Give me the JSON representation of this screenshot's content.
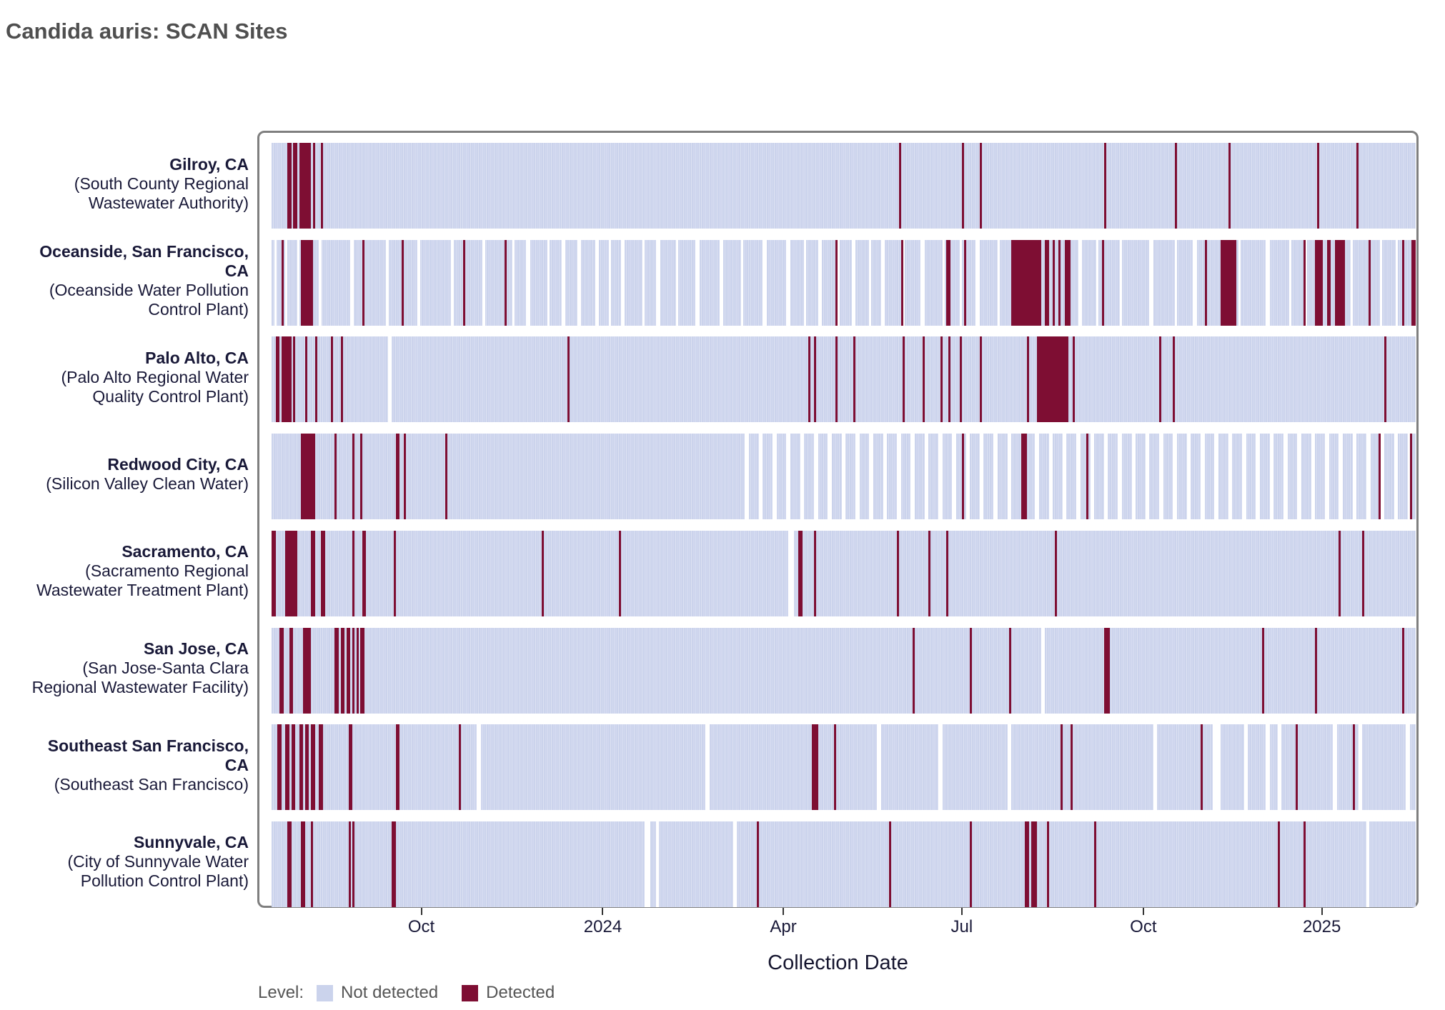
{
  "title": "Candida auris: SCAN Sites",
  "chart_data": {
    "type": "heatmap",
    "title": "Candida auris: SCAN Sites",
    "xlabel": "Collection Date",
    "x_unit": "days from start of plotted period (start = mid-July 2023, read from axis)",
    "day_span": [
      0,
      580
    ],
    "x_ticks": [
      {
        "label": "Oct",
        "day": 77
      },
      {
        "label": "2024",
        "day": 169
      },
      {
        "label": "Apr",
        "day": 260.5
      },
      {
        "label": "Jul",
        "day": 351
      },
      {
        "label": "Oct",
        "day": 443
      },
      {
        "label": "2025",
        "day": 533.5
      }
    ],
    "legend": {
      "label": "Level:",
      "items": [
        {
          "label": "Not detected",
          "color": "#cbd3ec"
        },
        {
          "label": "Detected",
          "color": "#7e0e33"
        }
      ]
    },
    "colors": {
      "not_detected": "#cbd3ec",
      "not_detected_stripe": "#dde2f3",
      "detected": "#7e0e33",
      "panel_border": "#7f7f7f",
      "label_text": "#191938",
      "title_text": "#4f4f4f",
      "legend_text": "#555555"
    },
    "sites": [
      {
        "name": "Gilroy, CA",
        "facility": "(South County Regional Wastewater Authority)",
        "gaps": [],
        "detected": [
          [
            8,
            10
          ],
          [
            11,
            13
          ],
          [
            14,
            20
          ],
          [
            21,
            22
          ],
          [
            25,
            26
          ],
          [
            318,
            319
          ],
          [
            350,
            351
          ],
          [
            359,
            360
          ],
          [
            422,
            423
          ],
          [
            458,
            459
          ],
          [
            485,
            486
          ],
          [
            530,
            531
          ],
          [
            550,
            551
          ]
        ]
      },
      {
        "name": "Oceanside, San Francisco, CA",
        "facility": "(Oceanside Water Pollution Control Plant)",
        "gaps": [
          [
            1.5,
            2.5
          ],
          [
            7,
            8
          ],
          [
            13,
            14
          ],
          [
            24,
            25.5
          ],
          [
            40,
            41.5
          ],
          [
            58,
            59.5
          ],
          [
            74,
            75.5
          ],
          [
            91,
            92.5
          ],
          [
            107,
            108.5
          ],
          [
            122,
            123
          ],
          [
            129,
            131
          ],
          [
            140,
            141
          ],
          [
            147,
            149
          ],
          [
            155,
            157
          ],
          [
            164,
            166
          ],
          [
            171,
            172
          ],
          [
            177,
            179
          ],
          [
            188,
            189
          ],
          [
            195,
            197
          ],
          [
            205,
            206
          ],
          [
            215,
            217
          ],
          [
            227,
            229
          ],
          [
            238,
            239
          ],
          [
            249,
            251
          ],
          [
            261,
            263
          ],
          [
            270,
            271
          ],
          [
            277,
            279
          ],
          [
            287,
            288
          ],
          [
            294,
            296
          ],
          [
            303,
            304
          ],
          [
            309,
            311
          ],
          [
            320,
            321
          ],
          [
            329,
            331
          ],
          [
            340,
            341
          ],
          [
            349,
            350
          ],
          [
            357,
            359
          ],
          [
            368,
            369
          ],
          [
            409,
            411
          ],
          [
            418,
            419
          ],
          [
            430,
            431
          ],
          [
            445,
            447
          ],
          [
            458,
            459
          ],
          [
            467,
            469
          ],
          [
            490,
            491
          ],
          [
            504,
            506
          ],
          [
            516,
            517
          ],
          [
            523,
            525
          ],
          [
            547,
            548
          ],
          [
            562,
            563
          ],
          [
            570,
            571
          ]
        ],
        "detected": [
          [
            5,
            6
          ],
          [
            15,
            21
          ],
          [
            46,
            47
          ],
          [
            66,
            67
          ],
          [
            97,
            98
          ],
          [
            118,
            119
          ],
          [
            286,
            287
          ],
          [
            319,
            320
          ],
          [
            342,
            344
          ],
          [
            351,
            352
          ],
          [
            375,
            390
          ],
          [
            392,
            394
          ],
          [
            396,
            397
          ],
          [
            399,
            400
          ],
          [
            402,
            405
          ],
          [
            421,
            422
          ],
          [
            473,
            474
          ],
          [
            481,
            489
          ],
          [
            523,
            524
          ],
          [
            529,
            533
          ],
          [
            535,
            537
          ],
          [
            539,
            544
          ],
          [
            556,
            557
          ],
          [
            573,
            574
          ],
          [
            578,
            580
          ]
        ]
      },
      {
        "name": "Palo Alto, CA",
        "facility": "(Palo Alto Regional Water Quality Control Plant)",
        "gaps": [
          [
            59,
            61
          ]
        ],
        "detected": [
          [
            2,
            4
          ],
          [
            5,
            8
          ],
          [
            8,
            10
          ],
          [
            11,
            12
          ],
          [
            17,
            18
          ],
          [
            22,
            23
          ],
          [
            30,
            31
          ],
          [
            35,
            36
          ],
          [
            150,
            151
          ],
          [
            272,
            273
          ],
          [
            275,
            276
          ],
          [
            286,
            287
          ],
          [
            295,
            296
          ],
          [
            320,
            321
          ],
          [
            330,
            331
          ],
          [
            339,
            340
          ],
          [
            343,
            344
          ],
          [
            349,
            350
          ],
          [
            359,
            360
          ],
          [
            383,
            384
          ],
          [
            388,
            404
          ],
          [
            406,
            407
          ],
          [
            450,
            451
          ],
          [
            457,
            458
          ],
          [
            564,
            565
          ]
        ]
      },
      {
        "name": "Redwood City, CA",
        "facility": "(Silicon Valley Clean Water)",
        "gaps": [],
        "pattern": {
          "start": 235,
          "end": 580,
          "on": 5,
          "off": 2
        },
        "detected": [
          [
            15,
            22
          ],
          [
            32,
            33
          ],
          [
            41,
            42
          ],
          [
            45,
            46
          ],
          [
            63,
            65
          ],
          [
            67,
            68
          ],
          [
            88,
            89
          ],
          [
            350,
            351
          ],
          [
            380,
            383
          ],
          [
            413,
            414
          ],
          [
            561,
            562
          ],
          [
            577,
            578
          ]
        ]
      },
      {
        "name": "Sacramento, CA",
        "facility": "(Sacramento Regional Wastewater Treatment Plant)",
        "gaps": [
          [
            262,
            265
          ]
        ],
        "detected": [
          [
            0,
            2
          ],
          [
            7,
            13
          ],
          [
            20,
            22
          ],
          [
            25,
            27
          ],
          [
            41,
            42
          ],
          [
            46,
            48
          ],
          [
            62,
            63
          ],
          [
            137,
            138
          ],
          [
            176,
            177
          ],
          [
            267,
            269
          ],
          [
            275,
            276
          ],
          [
            317,
            318
          ],
          [
            333,
            334
          ],
          [
            342,
            343
          ],
          [
            397,
            398
          ],
          [
            541,
            542
          ],
          [
            553,
            554
          ]
        ]
      },
      {
        "name": "San Jose, CA",
        "facility": "(San Jose-Santa Clara Regional Wastewater Facility)",
        "gaps": [
          [
            390,
            392
          ]
        ],
        "detected": [
          [
            4,
            6
          ],
          [
            9,
            11
          ],
          [
            16,
            20
          ],
          [
            32,
            34
          ],
          [
            35,
            37
          ],
          [
            38,
            40
          ],
          [
            41,
            42
          ],
          [
            43,
            44
          ],
          [
            45,
            47
          ],
          [
            325,
            326
          ],
          [
            354,
            355
          ],
          [
            374,
            375
          ],
          [
            422,
            425
          ],
          [
            502,
            503
          ],
          [
            529,
            530
          ],
          [
            573,
            574
          ]
        ]
      },
      {
        "name": "Southeast San Francisco, CA",
        "facility": "(Southeast San Francisco)",
        "gaps": [
          [
            104,
            106
          ],
          [
            220,
            222
          ],
          [
            307,
            309
          ],
          [
            338,
            340
          ],
          [
            373,
            375
          ],
          [
            447,
            449
          ],
          [
            477,
            481
          ],
          [
            493,
            495
          ],
          [
            504,
            506
          ],
          [
            510,
            512
          ],
          [
            538,
            540
          ],
          [
            551,
            553
          ],
          [
            575,
            577
          ]
        ],
        "detected": [
          [
            3,
            5
          ],
          [
            7,
            9
          ],
          [
            10,
            12
          ],
          [
            14,
            16
          ],
          [
            17,
            19
          ],
          [
            20,
            22
          ],
          [
            24,
            26
          ],
          [
            39,
            41
          ],
          [
            63,
            65
          ],
          [
            95,
            96
          ],
          [
            274,
            277
          ],
          [
            285,
            286
          ],
          [
            400,
            401
          ],
          [
            405,
            406
          ],
          [
            471,
            472
          ],
          [
            519,
            520
          ],
          [
            548,
            549
          ]
        ]
      },
      {
        "name": "Sunnyvale, CA",
        "facility": "(City of Sunnyvale Water Pollution Control Plant)",
        "gaps": [
          [
            189,
            192
          ],
          [
            195,
            196.5
          ],
          [
            234,
            236
          ],
          [
            555,
            556.5
          ]
        ],
        "detected": [
          [
            8,
            10
          ],
          [
            15,
            17
          ],
          [
            20,
            21
          ],
          [
            39,
            40
          ],
          [
            41,
            42
          ],
          [
            61,
            63
          ],
          [
            246,
            247
          ],
          [
            313,
            314
          ],
          [
            354,
            355
          ],
          [
            382,
            384
          ],
          [
            385,
            388
          ],
          [
            393,
            394
          ],
          [
            417,
            418
          ],
          [
            510,
            511
          ],
          [
            523,
            524
          ]
        ]
      }
    ]
  }
}
